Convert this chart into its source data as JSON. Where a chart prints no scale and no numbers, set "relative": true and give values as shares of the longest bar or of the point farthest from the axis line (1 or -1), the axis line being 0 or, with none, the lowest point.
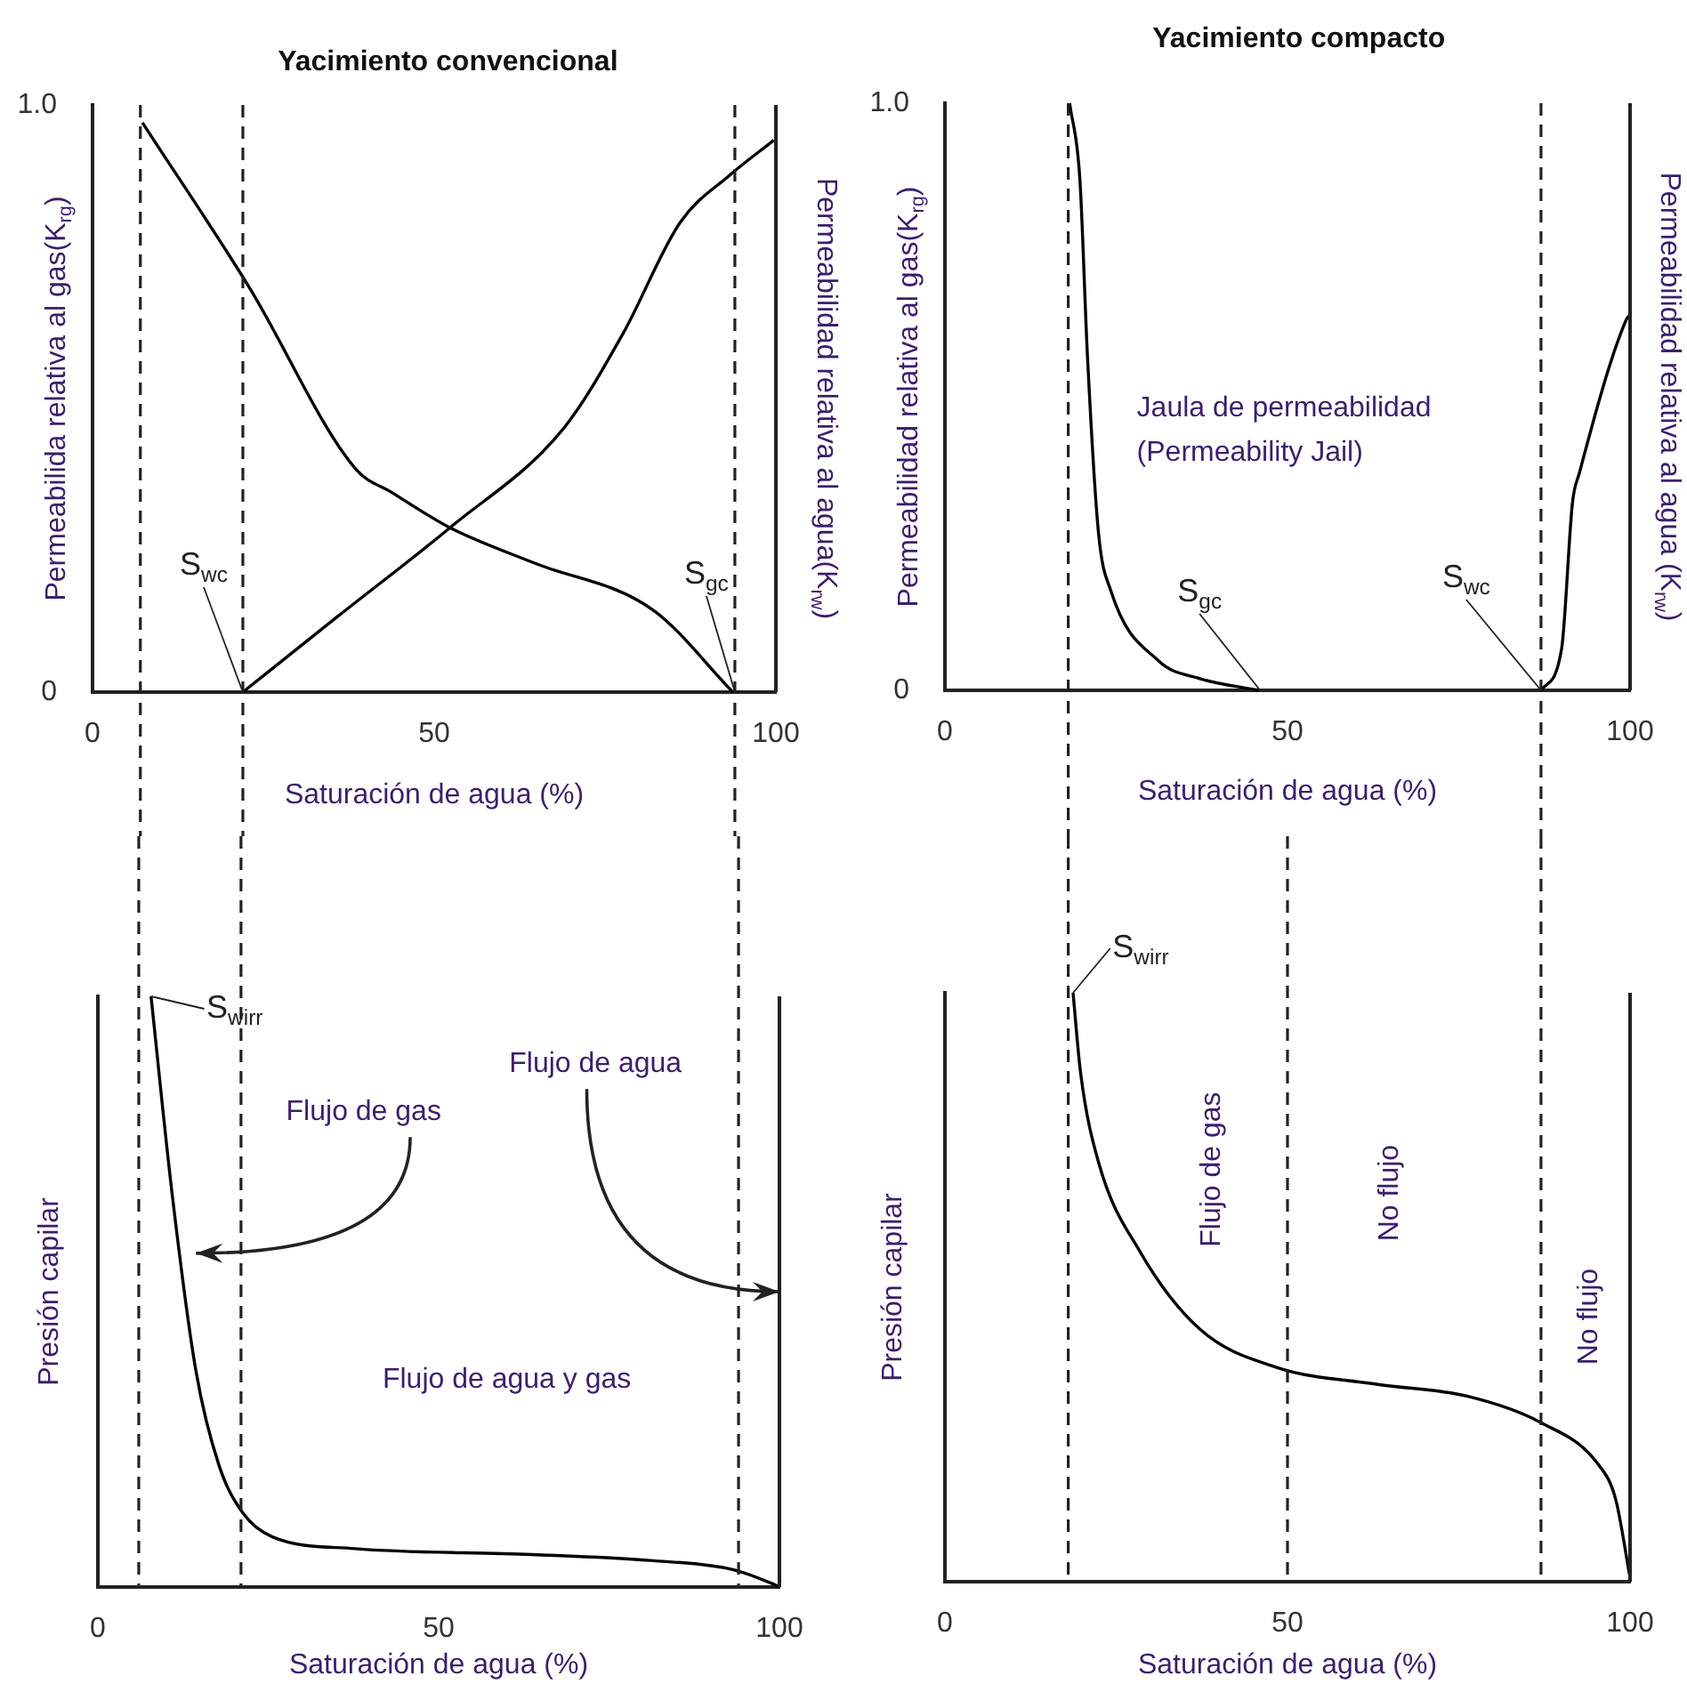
{
  "chart_data": [
    {
      "type": "line",
      "title": "Yacimiento convencional",
      "xlabel": "Saturación de agua (%)",
      "ylabel": "Permeabilida relativa al gas(K$_{rg}$)",
      "y2label": "Permeabilidad relativa al agua(K$_{rw}$)",
      "xlim": [
        0,
        100
      ],
      "xticks": [
        0,
        50,
        100
      ],
      "ylim": [
        0,
        1
      ],
      "yticks": [
        0,
        {
          "value": 1,
          "label": "1.0"
        }
      ],
      "series": [
        {
          "color": "#000000",
          "x": [
            7.3,
            22.9,
            38.5,
            43.8,
            52.3,
            64.6,
            82,
            93.7
          ],
          "values": [
            0.97,
            0.69,
            0.38,
            0.34,
            0.28,
            0.22,
            0.14,
            0
          ]
        },
        {
          "color": "#000000",
          "x": [
            22,
            36,
            52.3,
            69,
            77.6,
            86,
            93.2,
            99.7
          ],
          "values": [
            0,
            0.13,
            0.28,
            0.45,
            0.61,
            0.8,
            0.88,
            0.94
          ]
        }
      ],
      "ref_lines": [
        {
          "axis": "x",
          "value": 7,
          "line_style": "dashed"
        },
        {
          "axis": "x",
          "value": 22,
          "line_style": "dashed"
        },
        {
          "axis": "x",
          "value": 94,
          "line_style": "dashed"
        }
      ],
      "annotations": [
        {
          "text": "S$_{wc}$",
          "x": 22,
          "y": 0
        },
        {
          "text": "S$_{gc}$",
          "x": 94,
          "y": 0
        }
      ]
    },
    {
      "type": "line",
      "title": "Yacimiento compacto",
      "xlabel": "Saturación de agua (%)",
      "ylabel": "Permeabilidad relativa al gas(K$_{rg}$)",
      "y2label": "Permeabilidad relativa al agua (K$_{rw}$)",
      "xlim": [
        0,
        100
      ],
      "xticks": [
        0,
        50,
        100
      ],
      "ylim": [
        0,
        1
      ],
      "yticks": [
        0,
        {
          "value": 1,
          "label": "1.0"
        }
      ],
      "series": [
        {
          "color": "#000000",
          "x": [
            18.2,
            19.7,
            20.8,
            22.4,
            24.2,
            31.2,
            37.2,
            45.8
          ],
          "values": [
            1,
            0.87,
            0.57,
            0.27,
            0.17,
            0.05,
            0.02,
            0
          ]
        },
        {
          "color": "#000000",
          "x": [
            87,
            90,
            91.6,
            92.6,
            99.4,
            100
          ],
          "values": [
            0,
            0.07,
            0.32,
            0.37,
            0.63,
            0.64
          ]
        }
      ],
      "ref_lines": [
        {
          "axis": "x",
          "value": 18,
          "line_style": "dashed"
        },
        {
          "axis": "x",
          "value": 87,
          "line_style": "dashed"
        }
      ],
      "annotations": [
        "Jaula de permeabilidad\n(Permeability Jail)",
        {
          "text": "S$_{gc}$",
          "x": 46,
          "y": 0
        },
        {
          "text": "S$_{wc}$",
          "x": 87,
          "y": 0
        }
      ]
    },
    {
      "type": "line",
      "relative": true,
      "tick_labels": "x",
      "xlabel": "Saturación de agua (%)",
      "ylabel": "Presión capilar",
      "xlim": [
        0,
        100
      ],
      "xticks": [
        0,
        50,
        100
      ],
      "series": [
        {
          "color": "#000000",
          "x": [
            7.8,
            10.9,
            14.4,
            17.8,
            21.3,
            25.6,
            37.7,
            63.7,
            81,
            93,
            99.1,
            100
          ],
          "values": [
            1,
            0.665,
            0.365,
            0.205,
            0.125,
            0.085,
            0.065,
            0.055,
            0.045,
            0.03,
            0.005,
            0
          ]
        }
      ],
      "ref_lines": [
        {
          "axis": "x",
          "value": 6,
          "line_style": "dashed"
        },
        {
          "axis": "x",
          "value": 21,
          "line_style": "dashed"
        },
        {
          "axis": "x",
          "value": 94,
          "line_style": "dashed"
        }
      ],
      "annotations": [
        {
          "text": "S$_{wirr}$",
          "x": 7.8,
          "y": 1
        },
        "Flujo de gas",
        "Flujo de agua",
        "Flujo de agua y gas"
      ]
    },
    {
      "type": "line",
      "relative": true,
      "tick_labels": "x",
      "xlabel": "Saturación de agua (%)",
      "ylabel": "Presión capilar",
      "xlim": [
        0,
        100
      ],
      "xticks": [
        0,
        50,
        100
      ],
      "series": [
        {
          "color": "#000000",
          "x": [
            18.7,
            19.8,
            22.4,
            28.5,
            37.2,
            48.4,
            63.2,
            76.2,
            87,
            95.3,
            97.9,
            100
          ],
          "values": [
            1,
            0.864,
            0.713,
            0.56,
            0.429,
            0.364,
            0.335,
            0.315,
            0.27,
            0.2,
            0.14,
            0.007
          ]
        }
      ],
      "ref_lines": [
        {
          "axis": "x",
          "value": 18,
          "line_style": "dashed"
        },
        {
          "axis": "x",
          "value": 50,
          "line_style": "dashed"
        },
        {
          "axis": "x",
          "value": 87,
          "line_style": "dashed"
        }
      ],
      "annotations": [
        {
          "text": "S$_{wirr}$",
          "x": 18.7,
          "y": 1
        },
        "Flujo de gas",
        "No flujo",
        "No flujo"
      ]
    }
  ]
}
